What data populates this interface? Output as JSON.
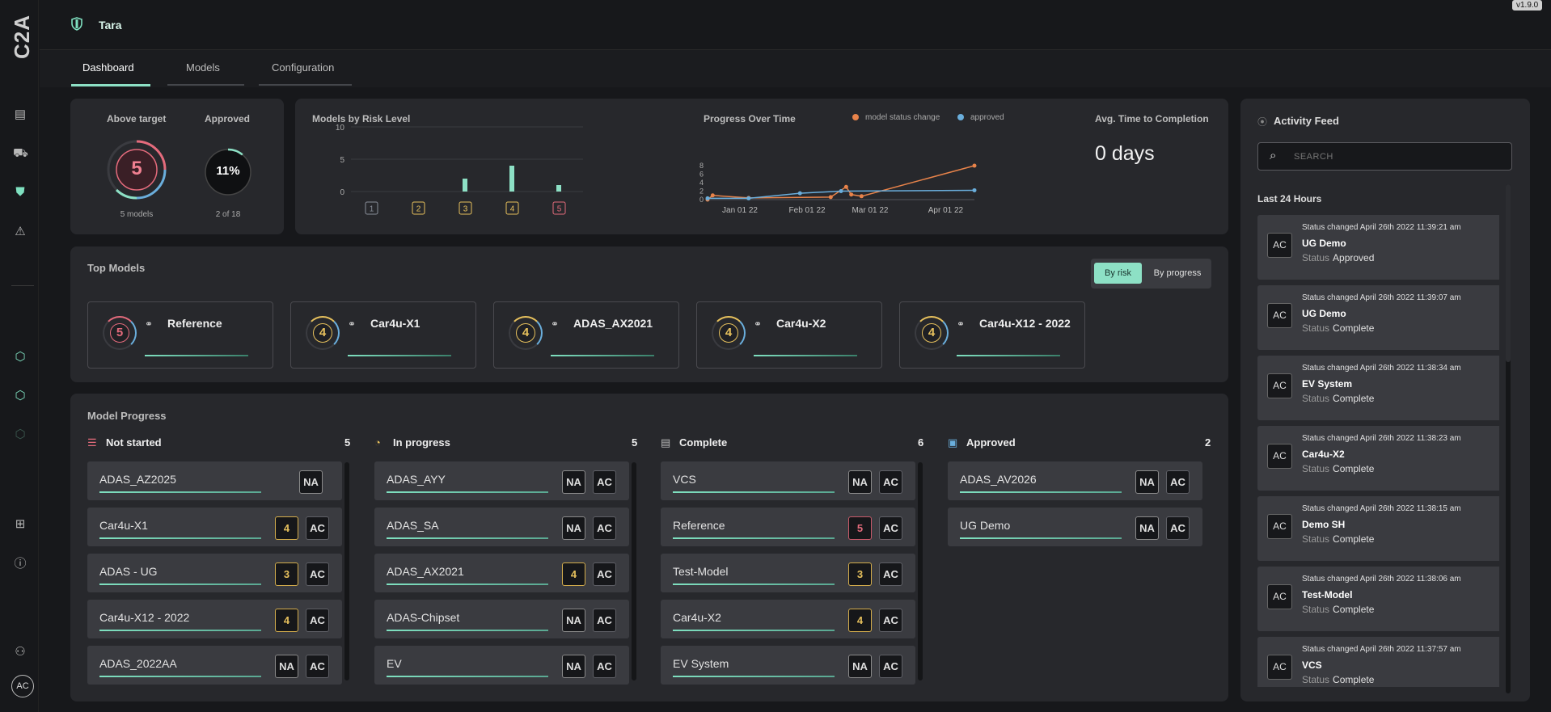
{
  "app": {
    "logo": "C2A",
    "title": "Tara",
    "version": "v1.9.0",
    "avatar": "AC"
  },
  "tabs": [
    {
      "label": "Dashboard"
    },
    {
      "label": "Models"
    },
    {
      "label": "Configuration"
    }
  ],
  "stats": {
    "above_target": {
      "label": "Above target",
      "value": "5",
      "sub": "5 models"
    },
    "approved": {
      "label": "Approved",
      "value": "11%",
      "sub": "2 of 18",
      "fraction": 0.11
    }
  },
  "risk_chart": {
    "title": "Models by Risk Level",
    "chart_data": {
      "type": "bar",
      "categories": [
        "1",
        "2",
        "3",
        "4",
        "5"
      ],
      "values": [
        0,
        0,
        2,
        4,
        1
      ],
      "yticks": [
        "10",
        "5",
        "0"
      ],
      "ylim": [
        0,
        10
      ]
    }
  },
  "progress_chart": {
    "title": "Progress Over Time",
    "legend": [
      "model status change",
      "approved"
    ],
    "yticks": [
      "8",
      "6",
      "4",
      "2",
      "0"
    ],
    "xticks": [
      "Jan 01 22",
      "Feb 01 22",
      "Mar 01 22",
      "Apr 01 22"
    ],
    "chart_data": {
      "type": "line",
      "series": [
        {
          "name": "model status change",
          "color": "#e8834a",
          "x": [
            0,
            0.5,
            4,
            12,
            13.5,
            14,
            15,
            26
          ],
          "y": [
            0,
            1,
            0.4,
            0.6,
            3,
            1.2,
            0.8,
            8
          ]
        },
        {
          "name": "approved",
          "color": "#6aaedc",
          "x": [
            0,
            4,
            9,
            13,
            26
          ],
          "y": [
            0.3,
            0.3,
            1.5,
            2,
            2.2
          ]
        }
      ],
      "ylim": [
        0,
        8
      ]
    }
  },
  "avg_time": {
    "label": "Avg. Time to Completion",
    "value": "0 days"
  },
  "top_models": {
    "title": "Top Models",
    "toggle": {
      "by_risk": "By risk",
      "by_progress": "By progress"
    },
    "items": [
      {
        "name": "Reference",
        "risk": "5",
        "color": "#e46b7c"
      },
      {
        "name": "Car4u-X1",
        "risk": "4",
        "color": "#e7c15d"
      },
      {
        "name": "ADAS_AX2021",
        "risk": "4",
        "color": "#e7c15d"
      },
      {
        "name": "Car4u-X2",
        "risk": "4",
        "color": "#e7c15d"
      },
      {
        "name": "Car4u-X12 - 2022",
        "risk": "4",
        "color": "#e7c15d"
      }
    ]
  },
  "model_progress": {
    "title": "Model Progress",
    "columns": [
      {
        "label": "Not started",
        "count": "5",
        "rows": [
          {
            "name": "ADAS_AZ2025",
            "risk": "NA",
            "ac": ""
          },
          {
            "name": "Car4u-X1",
            "risk": "4",
            "ac": "AC"
          },
          {
            "name": "ADAS - UG",
            "risk": "3",
            "ac": "AC"
          },
          {
            "name": "Car4u-X12 - 2022",
            "risk": "4",
            "ac": "AC"
          },
          {
            "name": "ADAS_2022AA",
            "risk": "NA",
            "ac": "AC"
          }
        ]
      },
      {
        "label": "In progress",
        "count": "5",
        "rows": [
          {
            "name": "ADAS_AYY",
            "risk": "NA",
            "ac": "AC"
          },
          {
            "name": "ADAS_SA",
            "risk": "NA",
            "ac": "AC"
          },
          {
            "name": "ADAS_AX2021",
            "risk": "4",
            "ac": "AC"
          },
          {
            "name": "ADAS-Chipset",
            "risk": "NA",
            "ac": "AC"
          },
          {
            "name": "EV",
            "risk": "NA",
            "ac": "AC"
          }
        ]
      },
      {
        "label": "Complete",
        "count": "6",
        "rows": [
          {
            "name": "VCS",
            "risk": "NA",
            "ac": "AC"
          },
          {
            "name": "Reference",
            "risk": "5",
            "ac": "AC"
          },
          {
            "name": "Test-Model",
            "risk": "3",
            "ac": "AC"
          },
          {
            "name": "Car4u-X2",
            "risk": "4",
            "ac": "AC"
          },
          {
            "name": "EV System",
            "risk": "NA",
            "ac": "AC"
          }
        ]
      },
      {
        "label": "Approved",
        "count": "2",
        "rows": [
          {
            "name": "ADAS_AV2026",
            "risk": "NA",
            "ac": "AC"
          },
          {
            "name": "UG Demo",
            "risk": "NA",
            "ac": "AC"
          }
        ]
      }
    ]
  },
  "activity_feed": {
    "title": "Activity Feed",
    "search_placeholder": "SEARCH",
    "section": "Last 24 Hours",
    "status_label": "Status",
    "items": [
      {
        "avatar": "AC",
        "time": "Status changed April 26th 2022 11:39:21 am",
        "name": "UG Demo",
        "status": "Approved"
      },
      {
        "avatar": "AC",
        "time": "Status changed April 26th 2022 11:39:07 am",
        "name": "UG Demo",
        "status": "Complete"
      },
      {
        "avatar": "AC",
        "time": "Status changed April 26th 2022 11:38:34 am",
        "name": "EV System",
        "status": "Complete"
      },
      {
        "avatar": "AC",
        "time": "Status changed April 26th 2022 11:38:23 am",
        "name": "Car4u-X2",
        "status": "Complete"
      },
      {
        "avatar": "AC",
        "time": "Status changed April 26th 2022 11:38:15 am",
        "name": "Demo SH",
        "status": "Complete"
      },
      {
        "avatar": "AC",
        "time": "Status changed April 26th 2022 11:38:06 am",
        "name": "Test-Model",
        "status": "Complete"
      },
      {
        "avatar": "AC",
        "time": "Status changed April 26th 2022 11:37:57 am",
        "name": "VCS",
        "status": "Complete"
      }
    ]
  },
  "colors": {
    "accent": "#8de0c5",
    "risk5": "#e46b7c",
    "risk4": "#e7c15d",
    "bg": "#17181b",
    "card": "#27282c"
  }
}
